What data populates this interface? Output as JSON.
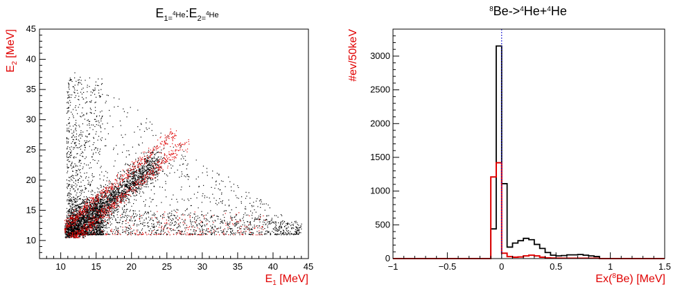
{
  "chart_data": [
    {
      "type": "scatter",
      "title": {
        "base1": "E",
        "sub1": "1=",
        "sup1": "4",
        "iso1": "He",
        "sep": ":",
        "base2": "E",
        "sub2": "2=",
        "sup2": "4",
        "iso2": "He"
      },
      "xlabel": {
        "base": "E",
        "sub": "1",
        "rest": " [MeV]"
      },
      "ylabel": {
        "base": "E",
        "sub": "2",
        "rest": " [MeV]"
      },
      "xlim": [
        7,
        45
      ],
      "ylim": [
        7,
        45
      ],
      "xticks": [
        "10",
        "15",
        "20",
        "25",
        "30",
        "35",
        "40",
        "45"
      ],
      "yticks": [
        "10",
        "15",
        "20",
        "25",
        "30",
        "35",
        "40",
        "45"
      ],
      "grid": false,
      "series": [
        {
          "color": "#000000",
          "description_role": "all events",
          "core_points": [
            [
              11,
              11
            ],
            [
              12,
              12
            ],
            [
              13,
              13
            ],
            [
              14,
              14
            ],
            [
              15,
              15
            ],
            [
              16,
              16
            ],
            [
              17,
              17
            ],
            [
              18,
              18
            ],
            [
              19,
              19
            ],
            [
              20,
              19.5
            ],
            [
              21,
              20
            ],
            [
              22,
              21
            ],
            [
              11,
              30
            ],
            [
              12,
              25
            ],
            [
              13,
              20
            ],
            [
              15,
              25
            ],
            [
              18,
              22
            ],
            [
              20,
              24
            ],
            [
              25,
              15
            ],
            [
              30,
              12
            ],
            [
              35,
              12
            ],
            [
              40,
              11.5
            ]
          ]
        },
        {
          "color": "#e00000",
          "description_role": "selected events",
          "core_points": [
            [
              11,
              11
            ],
            [
              12,
              12
            ],
            [
              13,
              13.5
            ],
            [
              14,
              14.5
            ],
            [
              15,
              15.5
            ],
            [
              16,
              16.5
            ],
            [
              17,
              17.5
            ],
            [
              18,
              18.5
            ],
            [
              19,
              19.5
            ],
            [
              20,
              20.5
            ],
            [
              22,
              21
            ],
            [
              24,
              23
            ],
            [
              26,
              25
            ],
            [
              28,
              27
            ]
          ]
        }
      ]
    },
    {
      "type": "line",
      "title": {
        "sup1": "8",
        "iso1": "Be->",
        "sup2": "4",
        "iso2": "He+",
        "sup3": "4",
        "iso3": "He"
      },
      "xlabel": {
        "pre": "Ex(",
        "sup": "8",
        "post": "Be) [MeV]"
      },
      "ylabel": "#ev/50keV",
      "xlim": [
        -1,
        1.5
      ],
      "ylim": [
        0,
        3400
      ],
      "xticks": [
        "−1",
        "−0.5",
        "0",
        "0.5",
        "1",
        "1.5"
      ],
      "yticks": [
        "0",
        "500",
        "1000",
        "1500",
        "2000",
        "2500",
        "3000"
      ],
      "vline_x": 0,
      "vline_color": "#0000cc",
      "bin_width": 0.05,
      "series": [
        {
          "color": "#000000",
          "bins_from_x": -0.1,
          "values": [
            440,
            3150,
            1110,
            170,
            230,
            265,
            300,
            280,
            210,
            150,
            90,
            50,
            40,
            45,
            55,
            55,
            60,
            50,
            40,
            30
          ]
        },
        {
          "color": "#e00000",
          "bins_from_x": -0.1,
          "values": [
            1210,
            1420,
            80,
            30,
            20,
            25,
            40,
            50,
            40,
            20,
            10,
            8,
            6,
            5,
            5,
            5,
            5,
            5,
            5,
            5
          ]
        }
      ]
    }
  ],
  "colors": {
    "axis": "#000000",
    "label_red": "#e00000",
    "label_black": "#000000",
    "vline": "#0000cc"
  }
}
